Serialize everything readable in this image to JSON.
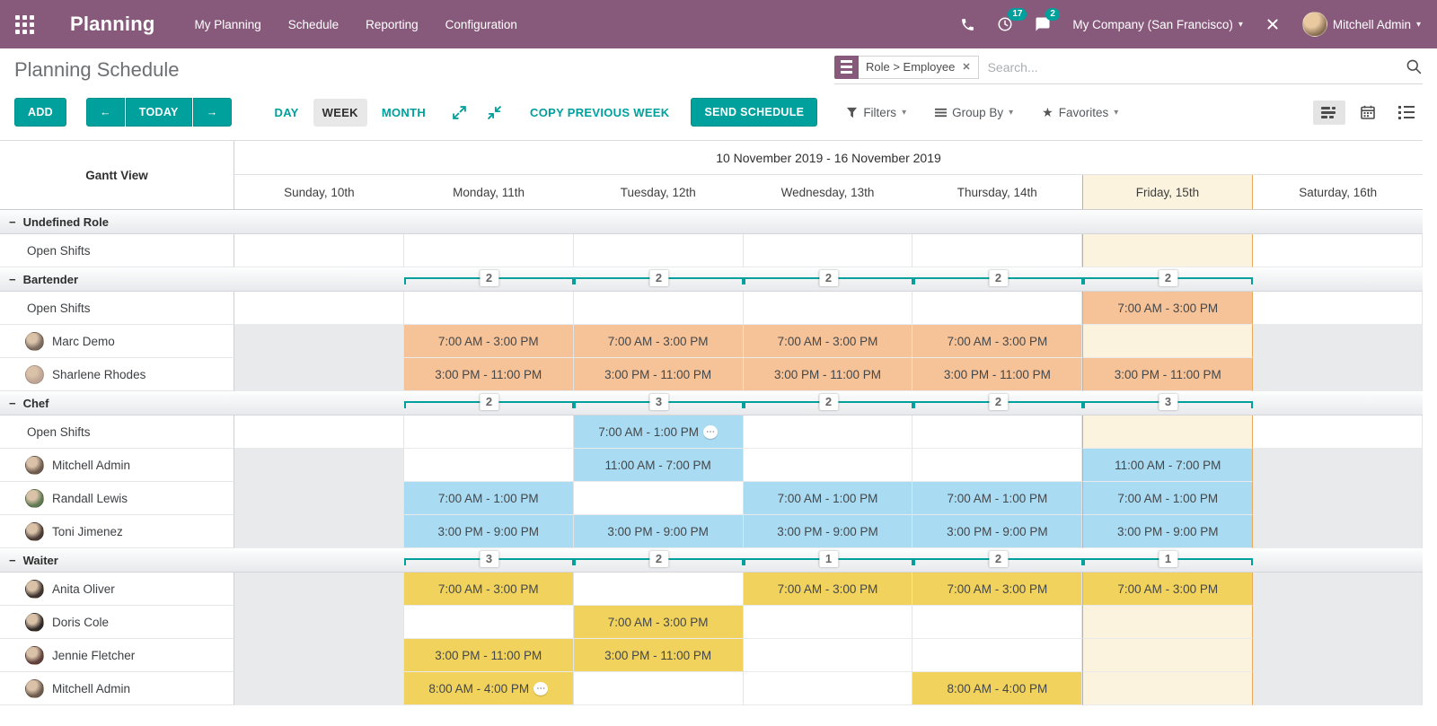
{
  "nav": {
    "app_name": "Planning",
    "menu_items": [
      "My Planning",
      "Schedule",
      "Reporting",
      "Configuration"
    ],
    "activity_count": "17",
    "message_count": "2",
    "company": "My Company (San Francisco)",
    "user_name": "Mitchell Admin"
  },
  "control_panel": {
    "title": "Planning Schedule",
    "search_facet": "Role > Employee",
    "search_placeholder": "Search..."
  },
  "toolbar": {
    "add_label": "ADD",
    "today_label": "TODAY",
    "prev_label": "←",
    "next_label": "→",
    "scale_day": "DAY",
    "scale_week": "WEEK",
    "scale_month": "MONTH",
    "copy_previous_week_label": "COPY PREVIOUS WEEK",
    "send_schedule_label": "SEND SCHEDULE",
    "filters_label": "Filters",
    "group_by_label": "Group By",
    "favorites_label": "Favorites"
  },
  "gantt": {
    "corner_label": "Gantt View",
    "range_label": "10 November 2019 - 16 November 2019",
    "day_headers": [
      "Sunday, 10th",
      "Monday, 11th",
      "Tuesday, 12th",
      "Wednesday, 13th",
      "Thursday, 14th",
      "Friday, 15th",
      "Saturday, 16th"
    ],
    "today_index": 5,
    "weekend_indexes": [
      0,
      6
    ],
    "open_shifts_label": "Open Shifts",
    "groups": [
      {
        "name": "Undefined Role",
        "pill_color": "",
        "counts": [
          null,
          null,
          null,
          null,
          null,
          null,
          null
        ],
        "rows": [
          {
            "label": "Open Shifts",
            "type": "open",
            "cells": [
              null,
              null,
              null,
              null,
              null,
              null,
              null
            ]
          }
        ]
      },
      {
        "name": "Bartender",
        "pill_color": "#F6C297",
        "counts": [
          null,
          2,
          2,
          2,
          2,
          2,
          null
        ],
        "rows": [
          {
            "label": "Open Shifts",
            "type": "open",
            "cells": [
              null,
              null,
              null,
              null,
              null,
              {
                "text": "7:00 AM - 3:00 PM"
              },
              null
            ]
          },
          {
            "label": "Marc Demo",
            "type": "employee",
            "cells": [
              null,
              {
                "text": "7:00 AM - 3:00 PM"
              },
              {
                "text": "7:00 AM - 3:00 PM"
              },
              {
                "text": "7:00 AM - 3:00 PM"
              },
              {
                "text": "7:00 AM - 3:00 PM"
              },
              null,
              null
            ]
          },
          {
            "label": "Sharlene Rhodes",
            "type": "employee",
            "cells": [
              null,
              {
                "text": "3:00 PM - 11:00 PM"
              },
              {
                "text": "3:00 PM - 11:00 PM"
              },
              {
                "text": "3:00 PM - 11:00 PM"
              },
              {
                "text": "3:00 PM - 11:00 PM"
              },
              {
                "text": "3:00 PM - 11:00 PM"
              },
              null
            ]
          }
        ]
      },
      {
        "name": "Chef",
        "pill_color": "#A9DBF2",
        "counts": [
          null,
          2,
          3,
          2,
          2,
          3,
          null
        ],
        "rows": [
          {
            "label": "Open Shifts",
            "type": "open",
            "cells": [
              null,
              null,
              {
                "text": "7:00 AM - 1:00 PM",
                "note": true
              },
              null,
              null,
              null,
              null
            ]
          },
          {
            "label": "Mitchell Admin",
            "type": "employee",
            "cells": [
              null,
              null,
              {
                "text": "11:00 AM - 7:00 PM"
              },
              null,
              null,
              {
                "text": "11:00 AM - 7:00 PM"
              },
              null
            ]
          },
          {
            "label": "Randall Lewis",
            "type": "employee",
            "cells": [
              null,
              {
                "text": "7:00 AM - 1:00 PM"
              },
              null,
              {
                "text": "7:00 AM - 1:00 PM"
              },
              {
                "text": "7:00 AM - 1:00 PM"
              },
              {
                "text": "7:00 AM - 1:00 PM"
              },
              null
            ]
          },
          {
            "label": "Toni Jimenez",
            "type": "employee",
            "cells": [
              null,
              {
                "text": "3:00 PM - 9:00 PM"
              },
              {
                "text": "3:00 PM - 9:00 PM"
              },
              {
                "text": "3:00 PM - 9:00 PM"
              },
              {
                "text": "3:00 PM - 9:00 PM"
              },
              {
                "text": "3:00 PM - 9:00 PM"
              },
              null
            ]
          }
        ]
      },
      {
        "name": "Waiter",
        "pill_color": "#F0D25C",
        "counts": [
          null,
          3,
          2,
          1,
          2,
          1,
          null
        ],
        "rows": [
          {
            "label": "Anita Oliver",
            "type": "employee",
            "cells": [
              null,
              {
                "text": "7:00 AM - 3:00 PM"
              },
              null,
              {
                "text": "7:00 AM - 3:00 PM"
              },
              {
                "text": "7:00 AM - 3:00 PM"
              },
              {
                "text": "7:00 AM - 3:00 PM"
              },
              null
            ]
          },
          {
            "label": "Doris Cole",
            "type": "employee",
            "cells": [
              null,
              null,
              {
                "text": "7:00 AM - 3:00 PM"
              },
              null,
              null,
              null,
              null
            ]
          },
          {
            "label": "Jennie Fletcher",
            "type": "employee",
            "cells": [
              null,
              {
                "text": "3:00 PM - 11:00 PM"
              },
              {
                "text": "3:00 PM - 11:00 PM"
              },
              null,
              null,
              null,
              null
            ]
          },
          {
            "label": "Mitchell Admin",
            "type": "employee",
            "cells": [
              null,
              {
                "text": "8:00 AM - 4:00 PM",
                "note": true
              },
              null,
              null,
              {
                "text": "8:00 AM - 4:00 PM"
              },
              null,
              null
            ]
          }
        ]
      }
    ]
  },
  "colors": {
    "nav_bg": "#875A7B",
    "accent": "#00A09D",
    "bartender_shift": "#F6C297",
    "chef_shift": "#A9DBF2",
    "waiter_shift": "#F0D25C",
    "today_bg": "#FCF3DF",
    "today_border": "#E9A85B",
    "weekend_bg": "#E8EAEC"
  }
}
